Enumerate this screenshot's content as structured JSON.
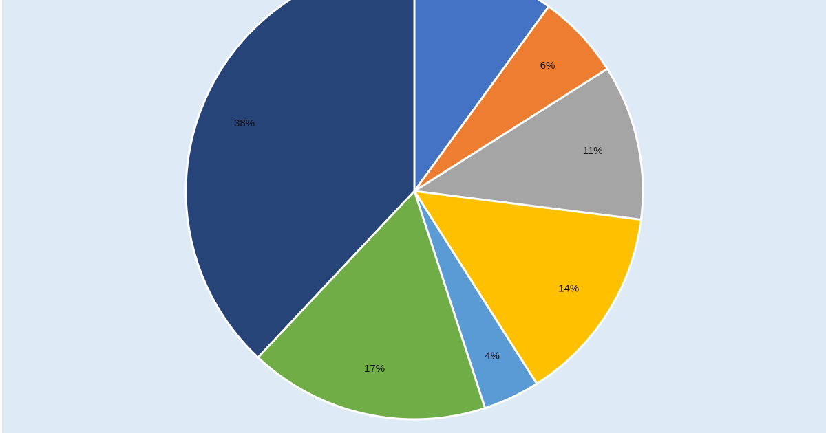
{
  "chart_data": {
    "type": "pie",
    "title": "",
    "categories": [
      "",
      "",
      "",
      "",
      "",
      "",
      ""
    ],
    "values": [
      10,
      6,
      11,
      14,
      4,
      17,
      38
    ],
    "labels": [
      "",
      "6%",
      "11%",
      "14%",
      "4%",
      "17%",
      "38%"
    ],
    "colors": [
      "#4472c4",
      "#ed7d31",
      "#a5a5a5",
      "#ffc000",
      "#5b9bd5",
      "#70ad47",
      "#264478"
    ],
    "start_angle_deg": 0,
    "direction": "clockwise",
    "slice_border_color": "#ffffff",
    "background_color": "#deeaf6",
    "legend": "none"
  }
}
